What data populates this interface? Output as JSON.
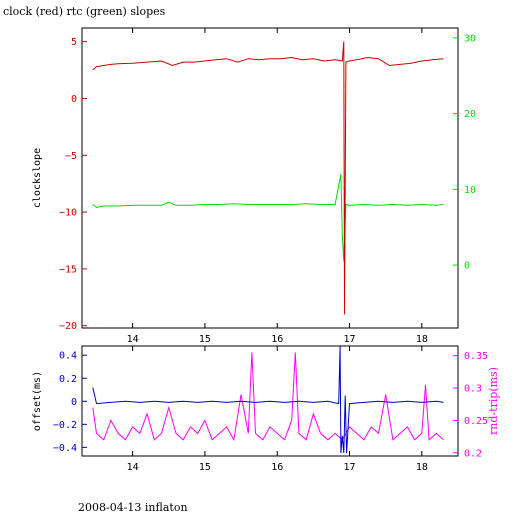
{
  "page": {
    "title": "clock (red) rtc (green) slopes",
    "footer": "2008-04-13 inflaton"
  },
  "colors": {
    "clock": "#cc0000",
    "rtc": "#00dd00",
    "offset": "#0000cc",
    "rndtrip": "#ff00ff",
    "frame": "#000000"
  },
  "chart_data": [
    {
      "type": "line",
      "title": "clock (red) rtc (green) slopes",
      "xlabel": "",
      "ylabel": "clockslope",
      "y2label": "",
      "xlim": [
        13.3,
        18.5
      ],
      "ylim": [
        -20.2,
        6.2
      ],
      "y2lim": [
        -8.3,
        31.3
      ],
      "xticks": [
        "14",
        "15",
        "16",
        "17",
        "18"
      ],
      "yticks": [
        "5",
        "0",
        "−5",
        "−10",
        "−15",
        "−20"
      ],
      "y2ticks": [
        "30",
        "20",
        "10",
        "0"
      ],
      "grid": false,
      "series": [
        {
          "axis": "left",
          "color": "#cc0000",
          "x": [
            13.45,
            13.5,
            13.6,
            13.7,
            13.8,
            14.0,
            14.2,
            14.4,
            14.55,
            14.7,
            14.85,
            15.0,
            15.15,
            15.3,
            15.45,
            15.6,
            15.75,
            15.9,
            16.05,
            16.2,
            16.35,
            16.5,
            16.65,
            16.8,
            16.9,
            16.92,
            16.93,
            16.95,
            17.0,
            17.1,
            17.25,
            17.4,
            17.55,
            17.7,
            17.85,
            18.0,
            18.15,
            18.3
          ],
          "y": [
            2.5,
            2.8,
            2.9,
            3.0,
            3.05,
            3.1,
            3.2,
            3.3,
            2.9,
            3.2,
            3.2,
            3.3,
            3.4,
            3.5,
            3.2,
            3.5,
            3.4,
            3.5,
            3.5,
            3.6,
            3.4,
            3.5,
            3.3,
            3.4,
            3.3,
            5.0,
            -19.0,
            3.2,
            3.3,
            3.4,
            3.6,
            3.5,
            2.9,
            3.0,
            3.1,
            3.3,
            3.4,
            3.5
          ]
        },
        {
          "axis": "right",
          "color": "#00dd00",
          "x": [
            13.45,
            13.5,
            13.6,
            13.8,
            14.0,
            14.2,
            14.4,
            14.5,
            14.6,
            14.8,
            15.0,
            15.2,
            15.4,
            15.6,
            15.8,
            16.0,
            16.2,
            16.4,
            16.6,
            16.8,
            16.88,
            16.9,
            16.92,
            16.95,
            17.0,
            17.2,
            17.4,
            17.6,
            17.8,
            18.0,
            18.2,
            18.3
          ],
          "y": [
            8.0,
            7.6,
            7.8,
            7.8,
            7.9,
            7.9,
            7.9,
            8.3,
            7.9,
            7.9,
            8.0,
            8.0,
            8.1,
            8.0,
            8.0,
            8.0,
            8.0,
            8.1,
            8.0,
            8.0,
            12.0,
            4.0,
            0.5,
            8.0,
            7.9,
            8.0,
            7.9,
            8.0,
            7.9,
            8.0,
            7.9,
            8.0
          ]
        }
      ]
    },
    {
      "type": "line",
      "title": "",
      "xlabel": "",
      "ylabel": "offset(ms)",
      "y2label": "rnd-trip(ms)",
      "xlim": [
        13.3,
        18.5
      ],
      "ylim": [
        -0.475,
        0.48
      ],
      "y2lim": [
        0.195,
        0.365
      ],
      "xticks": [
        "14",
        "15",
        "16",
        "17",
        "18"
      ],
      "yticks": [
        "0.4",
        "0.2",
        "0",
        "−0.2",
        "−0.4"
      ],
      "y2ticks": [
        "0.35",
        "0.3",
        "0.25",
        "0.2"
      ],
      "grid": false,
      "series": [
        {
          "axis": "left",
          "color": "#0000cc",
          "x": [
            13.45,
            13.5,
            13.7,
            13.9,
            14.1,
            14.3,
            14.5,
            14.7,
            14.9,
            15.1,
            15.3,
            15.5,
            15.7,
            15.9,
            16.1,
            16.3,
            16.5,
            16.7,
            16.85,
            16.87,
            16.88,
            16.9,
            16.92,
            16.94,
            16.96,
            17.0,
            17.2,
            17.4,
            17.6,
            17.8,
            18.0,
            18.2,
            18.3
          ],
          "y": [
            0.12,
            -0.02,
            -0.01,
            0.0,
            -0.01,
            0.0,
            -0.01,
            0.0,
            -0.01,
            0.0,
            -0.01,
            0.0,
            -0.01,
            0.0,
            -0.01,
            0.0,
            -0.01,
            0.0,
            -0.02,
            0.48,
            -0.45,
            -0.3,
            -0.45,
            0.05,
            -0.45,
            -0.02,
            -0.01,
            0.0,
            -0.01,
            0.0,
            -0.01,
            0.0,
            -0.01
          ]
        },
        {
          "axis": "right",
          "color": "#ff00ff",
          "x": [
            13.45,
            13.5,
            13.6,
            13.7,
            13.8,
            13.9,
            14.0,
            14.1,
            14.2,
            14.3,
            14.4,
            14.5,
            14.6,
            14.7,
            14.8,
            14.9,
            15.0,
            15.1,
            15.2,
            15.3,
            15.4,
            15.5,
            15.6,
            15.65,
            15.7,
            15.8,
            15.9,
            16.0,
            16.1,
            16.2,
            16.25,
            16.3,
            16.4,
            16.5,
            16.6,
            16.7,
            16.8,
            16.9,
            17.0,
            17.1,
            17.2,
            17.3,
            17.4,
            17.5,
            17.6,
            17.7,
            17.8,
            17.9,
            18.0,
            18.05,
            18.1,
            18.2,
            18.3
          ],
          "y": [
            0.27,
            0.23,
            0.22,
            0.25,
            0.23,
            0.22,
            0.24,
            0.23,
            0.26,
            0.22,
            0.23,
            0.27,
            0.23,
            0.22,
            0.24,
            0.23,
            0.25,
            0.22,
            0.23,
            0.24,
            0.22,
            0.29,
            0.23,
            0.355,
            0.23,
            0.22,
            0.24,
            0.23,
            0.22,
            0.25,
            0.355,
            0.23,
            0.22,
            0.26,
            0.23,
            0.22,
            0.23,
            0.22,
            0.24,
            0.23,
            0.22,
            0.24,
            0.23,
            0.29,
            0.22,
            0.23,
            0.24,
            0.22,
            0.23,
            0.305,
            0.22,
            0.23,
            0.22
          ]
        }
      ]
    }
  ]
}
